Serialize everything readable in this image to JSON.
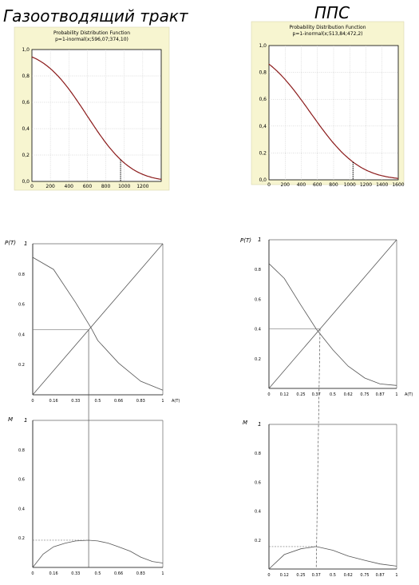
{
  "titles": {
    "left": "Газоотводящий тракт",
    "right": "ППС"
  },
  "chart_data": [
    {
      "id": "pdf-left",
      "type": "line",
      "title": "Probability Distribution Function",
      "subtitle": "p=1-inormal(x;596,07;374,10)",
      "xlim": [
        0,
        1400
      ],
      "ylim": [
        0,
        1.0
      ],
      "xticks": [
        "0",
        "200",
        "400",
        "600",
        "800",
        "1000",
        "1200"
      ],
      "yticks": [
        "0,0",
        "0,2",
        "0,4",
        "0,6",
        "0,8",
        "1,0"
      ],
      "grid": true,
      "mean": 596.07,
      "sd": 374.1,
      "marker_x": 960,
      "colors": {
        "curve": "#8b1a1a",
        "panel": "#f7f5d0"
      }
    },
    {
      "id": "pdf-right",
      "type": "line",
      "title": "Probability Distribution Function",
      "subtitle": "p=1-inormal(x;513,84;472,2)",
      "xlim": [
        0,
        1600
      ],
      "ylim": [
        0,
        1.0
      ],
      "xticks": [
        "0",
        "200",
        "400",
        "600",
        "800",
        "1000",
        "1200",
        "1400",
        "1600"
      ],
      "yticks": [
        "0,0",
        "0,2",
        "0,4",
        "0,6",
        "0,8",
        "1,0"
      ],
      "grid": true,
      "mean": 513.84,
      "sd": 472.2,
      "marker_x": 1040,
      "colors": {
        "curve": "#8b1a1a",
        "panel": "#f7f5d0"
      }
    },
    {
      "id": "pa-left",
      "type": "line",
      "ylabel": "P(T)",
      "xlabel": "A(T)",
      "xlim": [
        0,
        1
      ],
      "ylim": [
        0,
        1
      ],
      "xticks": [
        "0",
        "0.16",
        "0.33",
        "0.5",
        "0.66",
        "0.83",
        "1"
      ],
      "yticks": [
        "0.2",
        "0.4",
        "0.6",
        "0.8",
        "1"
      ],
      "series": [
        {
          "x": [
            0,
            0.16,
            0.33,
            0.45,
            0.5,
            0.66,
            0.83,
            1
          ],
          "y": [
            0.91,
            0.83,
            0.61,
            0.44,
            0.36,
            0.21,
            0.09,
            0.03
          ]
        },
        {
          "x": [
            0,
            1
          ],
          "y": [
            0,
            1
          ]
        }
      ],
      "intersection": [
        0.43,
        0.43
      ]
    },
    {
      "id": "pa-right",
      "type": "line",
      "ylabel": "P(T)",
      "xlabel": "A(T)",
      "xlim": [
        0,
        1
      ],
      "ylim": [
        0,
        1
      ],
      "xticks": [
        "0",
        "0.12",
        "0.25",
        "0.37",
        "0.5",
        "0.62",
        "0.75",
        "0.87",
        "1"
      ],
      "yticks": [
        "0.2",
        "0.4",
        "0.6",
        "0.8",
        "1"
      ],
      "series": [
        {
          "x": [
            0,
            0.12,
            0.25,
            0.37,
            0.5,
            0.62,
            0.75,
            0.87,
            1
          ],
          "y": [
            0.84,
            0.74,
            0.56,
            0.4,
            0.26,
            0.15,
            0.07,
            0.03,
            0.02
          ]
        },
        {
          "x": [
            0,
            1
          ],
          "y": [
            0,
            1
          ]
        }
      ],
      "intersection": [
        0.4,
        0.4
      ]
    },
    {
      "id": "m-left",
      "type": "line",
      "ylabel": "M",
      "xlim": [
        0,
        1
      ],
      "ylim": [
        0,
        1
      ],
      "xticks": [
        "0",
        "0.16",
        "0.33",
        "0.5",
        "0.66",
        "0.83",
        "1"
      ],
      "yticks": [
        "0.2",
        "0.4",
        "0.6",
        "0.8",
        "1"
      ],
      "series": [
        {
          "x": [
            0,
            0.08,
            0.16,
            0.25,
            0.33,
            0.43,
            0.5,
            0.58,
            0.66,
            0.75,
            0.83,
            0.92,
            1
          ],
          "y": [
            0,
            0.09,
            0.14,
            0.165,
            0.18,
            0.185,
            0.18,
            0.165,
            0.14,
            0.11,
            0.07,
            0.04,
            0.03
          ]
        }
      ],
      "max_point": [
        0.43,
        0.185
      ]
    },
    {
      "id": "m-right",
      "type": "line",
      "ylabel": "M",
      "xlim": [
        0,
        1
      ],
      "ylim": [
        0,
        1
      ],
      "xticks": [
        "0",
        "0.12",
        "0.25",
        "0.37",
        "0.5",
        "0.62",
        "0.75",
        "0.87",
        "1"
      ],
      "yticks": [
        "0.2",
        "0.4",
        "0.6",
        "0.8",
        "1"
      ],
      "series": [
        {
          "x": [
            0,
            0.12,
            0.25,
            0.37,
            0.5,
            0.62,
            0.75,
            0.87,
            1
          ],
          "y": [
            0,
            0.1,
            0.14,
            0.155,
            0.13,
            0.09,
            0.06,
            0.035,
            0.02
          ]
        }
      ],
      "max_point": [
        0.37,
        0.155
      ]
    }
  ]
}
